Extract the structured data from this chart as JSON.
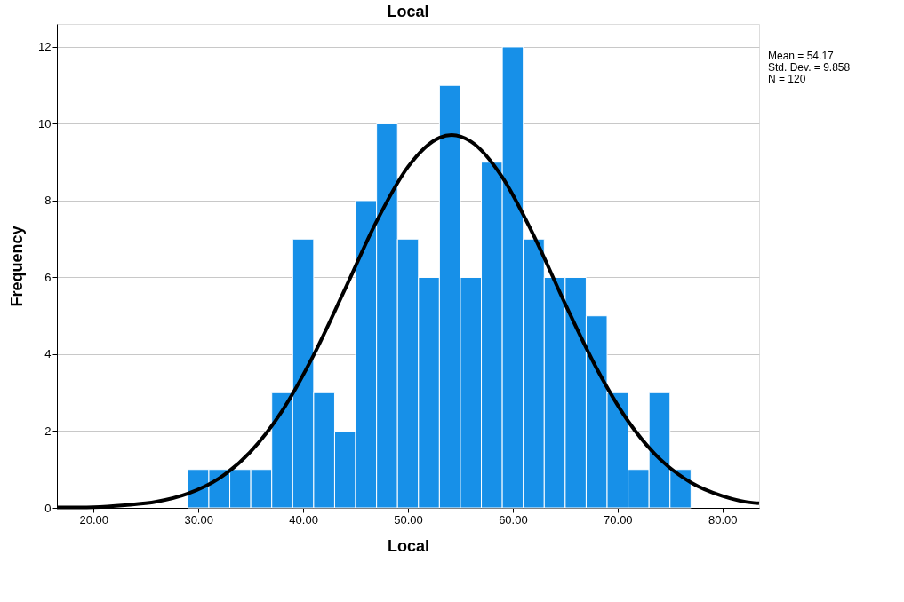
{
  "chart_data": {
    "type": "histogram",
    "title": "Local",
    "xlabel": "Local",
    "ylabel": "Frequency",
    "bins": [
      29,
      31,
      33,
      35,
      37,
      39,
      41,
      43,
      45,
      47,
      49,
      51,
      53,
      55,
      57,
      59,
      61,
      63,
      65,
      67,
      69,
      71,
      73,
      75,
      77
    ],
    "values": [
      1,
      1,
      1,
      1,
      3,
      7,
      3,
      2,
      8,
      10,
      7,
      6,
      11,
      6,
      9,
      12,
      7,
      6,
      6,
      5,
      3,
      1,
      3,
      1
    ],
    "color": "#1790e8",
    "series": [
      {
        "type": "line",
        "color": "#000000",
        "x": [
          16.5,
          20,
          23,
          26,
          29,
          32,
          35,
          38,
          41,
          44,
          47,
          50,
          53,
          54.17,
          56,
          59,
          62,
          65,
          68,
          71,
          74,
          77,
          80,
          83,
          83.5
        ],
        "values": [
          0.01,
          0.02,
          0.07,
          0.16,
          0.37,
          0.77,
          1.47,
          2.53,
          3.98,
          5.7,
          7.46,
          8.88,
          9.64,
          9.71,
          9.54,
          8.61,
          7.09,
          5.31,
          3.63,
          2.26,
          1.28,
          0.66,
          0.31,
          0.13,
          0.12
        ]
      }
    ],
    "xlim": [
      16.5,
      83.5
    ],
    "xticks": [
      {
        "value": 20,
        "label": "20.00"
      },
      {
        "value": 30,
        "label": "30.00"
      },
      {
        "value": 40,
        "label": "40.00"
      },
      {
        "value": 50,
        "label": "50.00"
      },
      {
        "value": 60,
        "label": "60.00"
      },
      {
        "value": 70,
        "label": "70.00"
      },
      {
        "value": 80,
        "label": "80.00"
      }
    ],
    "ylim": [
      0,
      12.6
    ],
    "yticks": [
      0,
      2,
      4,
      6,
      8,
      10,
      12
    ],
    "grid": "y",
    "annotations": [
      "Mean = 54.17",
      "Std. Dev. = 9.858",
      "N = 120"
    ]
  }
}
